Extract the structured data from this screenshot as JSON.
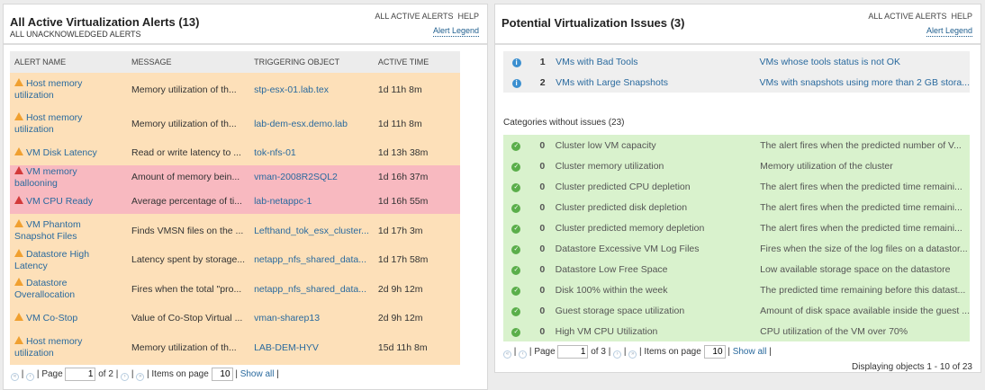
{
  "left": {
    "title": "All Active Virtualization Alerts (13)",
    "subtitle": "ALL UNACKNOWLEDGED ALERTS",
    "link_all": "ALL ACTIVE ALERTS",
    "link_help": "HELP",
    "legend": "Alert Legend",
    "columns": [
      "ALERT NAME",
      "MESSAGE",
      "TRIGGERING OBJECT",
      "ACTIVE TIME"
    ],
    "rows": [
      {
        "severity": "warning",
        "name": "Host memory utilization",
        "message": "Memory utilization of th...",
        "object": "stp-esx-01.lab.tex",
        "time": "1d 11h 8m"
      },
      {
        "severity": "warning",
        "name": "Host memory utilization",
        "message": "Memory utilization of th...",
        "object": "lab-dem-esx.demo.lab",
        "time": "1d 11h 8m"
      },
      {
        "severity": "warning",
        "name": "VM Disk Latency",
        "message": "Read or write latency to ...",
        "object": "tok-nfs-01",
        "time": "1d 13h 38m"
      },
      {
        "severity": "critical",
        "name": "VM memory ballooning",
        "message": "Amount of memory bein...",
        "object": "vman-2008R2SQL2",
        "time": "1d 16h 37m"
      },
      {
        "severity": "critical",
        "name": "VM CPU Ready",
        "message": "Average percentage of ti...",
        "object": "lab-netappc-1",
        "time": "1d 16h 55m"
      },
      {
        "severity": "warning",
        "name": "VM Phantom Snapshot Files",
        "message": "Finds VMSN files on the ...",
        "object": "Lefthand_tok_esx_cluster...",
        "time": "1d 17h 3m"
      },
      {
        "severity": "warning",
        "name": "Datastore High Latency",
        "message": "Latency spent by storage...",
        "object": "netapp_nfs_shared_data...",
        "time": "1d 17h 58m"
      },
      {
        "severity": "warning",
        "name": "Datastore Overallocation",
        "message": "Fires when the total \"pro...",
        "object": "netapp_nfs_shared_data...",
        "time": "2d 9h 12m"
      },
      {
        "severity": "warning",
        "name": "VM Co-Stop",
        "message": "Value of Co-Stop Virtual ...",
        "object": "vman-sharep13",
        "time": "2d 9h 12m"
      },
      {
        "severity": "warning",
        "name": "Host memory utilization",
        "message": "Memory utilization of th...",
        "object": "LAB-DEM-HYV",
        "time": "15d 11h 8m"
      }
    ],
    "pager": {
      "page_label": "Page",
      "page": "1",
      "of": "of 2",
      "items_label": "Items on page",
      "items": "10",
      "show_all": "Show all"
    }
  },
  "right": {
    "title": "Potential Virtualization Issues (3)",
    "link_all": "ALL ACTIVE ALERTS",
    "link_help": "HELP",
    "legend": "Alert Legend",
    "issues": [
      {
        "count": "1",
        "name": "VMs with Bad Tools",
        "desc": "VMs whose tools status is not OK"
      },
      {
        "count": "2",
        "name": "VMs with Large Snapshots",
        "desc": "VMs with snapshots using more than 2 GB stora..."
      }
    ],
    "categories_label": "Categories without issues (23)",
    "categories": [
      {
        "count": "0",
        "name": "Cluster low VM capacity",
        "desc": "The alert fires when the predicted number of V..."
      },
      {
        "count": "0",
        "name": "Cluster memory utilization",
        "desc": "Memory utilization of the cluster"
      },
      {
        "count": "0",
        "name": "Cluster predicted CPU depletion",
        "desc": "The alert fires when the predicted time remaini..."
      },
      {
        "count": "0",
        "name": "Cluster predicted disk depletion",
        "desc": "The alert fires when the predicted time remaini..."
      },
      {
        "count": "0",
        "name": "Cluster predicted memory depletion",
        "desc": "The alert fires when the predicted time remaini..."
      },
      {
        "count": "0",
        "name": "Datastore Excessive VM Log Files",
        "desc": "Fires when the size of the log files on a datastor..."
      },
      {
        "count": "0",
        "name": "Datastore Low Free Space",
        "desc": "Low available storage space on the datastore"
      },
      {
        "count": "0",
        "name": "Disk 100% within the week",
        "desc": "The predicted time remaining before this datast..."
      },
      {
        "count": "0",
        "name": "Guest storage space utilization",
        "desc": "Amount of disk space available inside the guest ..."
      },
      {
        "count": "0",
        "name": "High VM CPU Utilization",
        "desc": "CPU utilization of the VM over 70%"
      }
    ],
    "pager": {
      "page_label": "Page",
      "page": "1",
      "of": "of 3",
      "items_label": "Items on page",
      "items": "10",
      "show_all": "Show all"
    },
    "displaying": "Displaying objects 1 - 10 of 23"
  },
  "colors": {
    "warning_row": "#fde0b9",
    "critical_row": "#f8b9c0",
    "ok_row": "#d9f2cd",
    "link": "#2a6a9e"
  }
}
